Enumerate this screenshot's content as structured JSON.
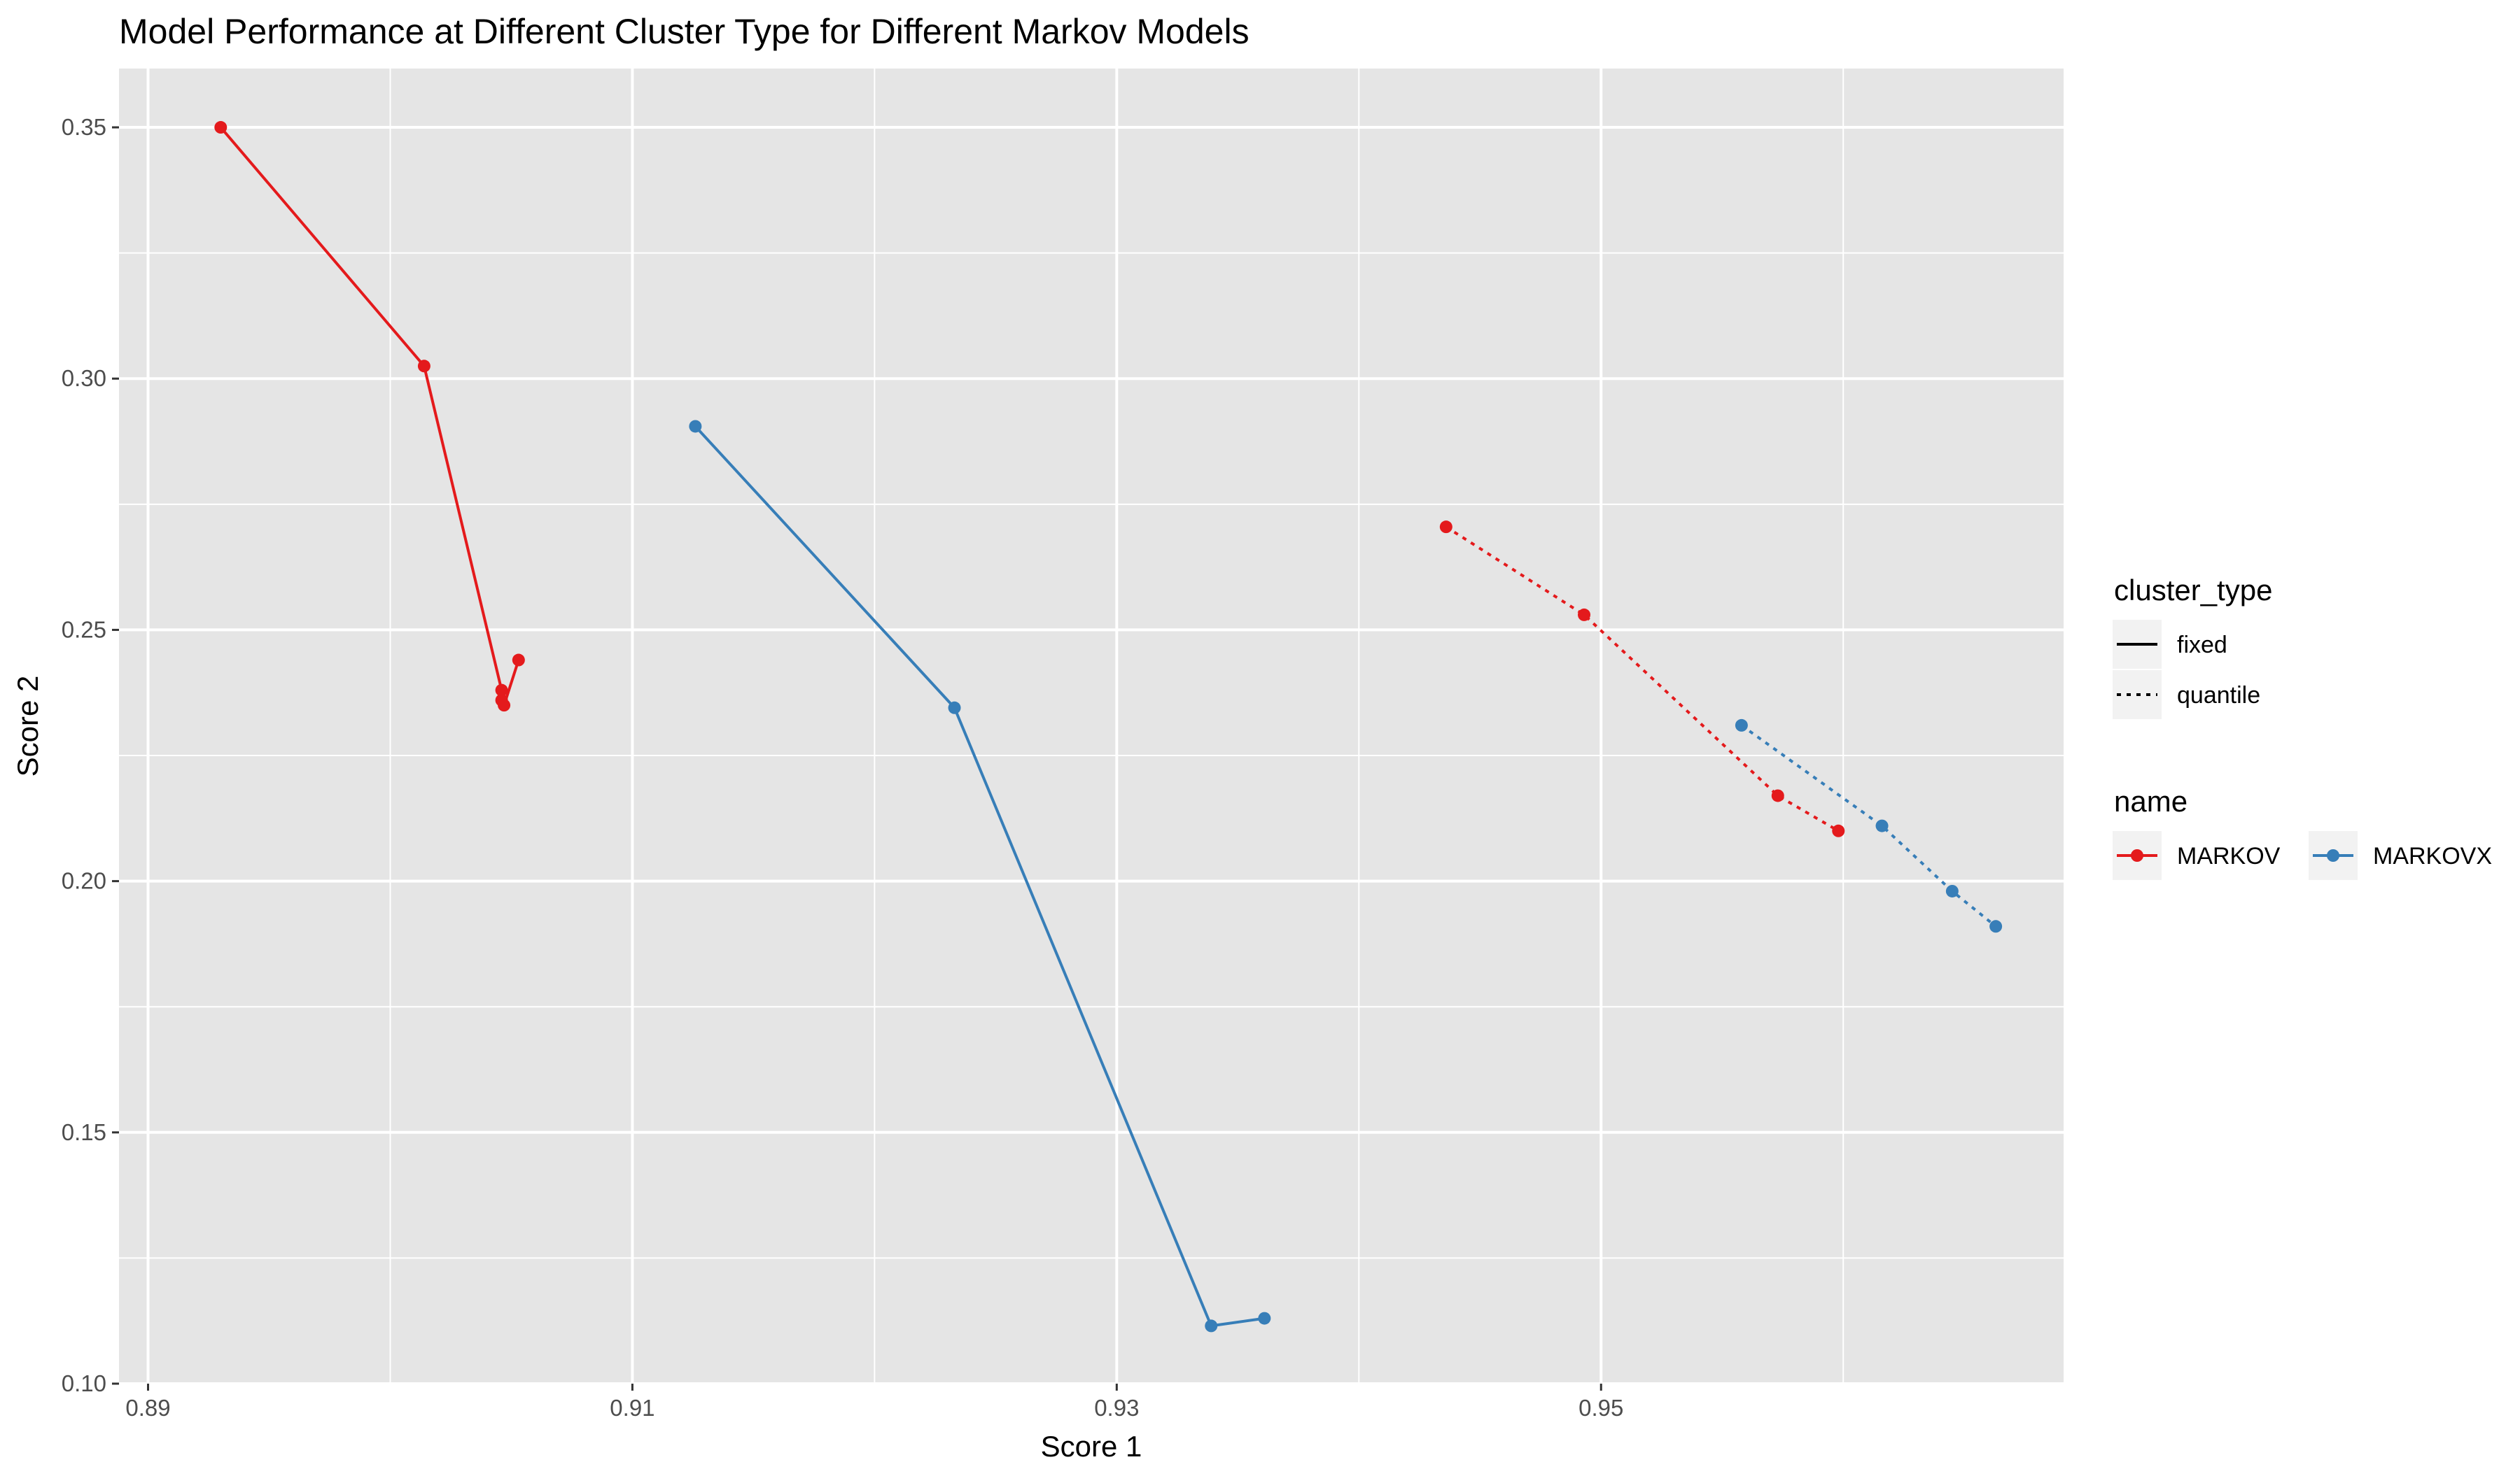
{
  "chart_data": {
    "type": "line",
    "title": "Model Performance at Different Cluster Type for Different Markov Models",
    "xlabel": "Score 1",
    "ylabel": "Score 2",
    "xlim": [
      0.8888,
      0.9691
    ],
    "ylim": [
      0.1,
      0.3617
    ],
    "x_ticks": [
      0.89,
      0.91,
      0.93,
      0.95
    ],
    "x_tick_labels": [
      "0.89",
      "0.91",
      "0.93",
      "0.95"
    ],
    "y_ticks": [
      0.1,
      0.15,
      0.2,
      0.25,
      0.3,
      0.35
    ],
    "y_tick_labels": [
      "0.10",
      "0.15",
      "0.20",
      "0.25",
      "0.30",
      "0.35"
    ],
    "grid": true,
    "legend_placement": "right",
    "legends": {
      "cluster_type": {
        "title": "cluster_type",
        "items": [
          {
            "label": "fixed",
            "linestyle": "solid"
          },
          {
            "label": "quantile",
            "linestyle": "dotted"
          }
        ]
      },
      "name": {
        "title": "name",
        "items": [
          {
            "label": "MARKOV",
            "color": "#E41A1C"
          },
          {
            "label": "MARKOVX",
            "color": "#377EB8"
          }
        ]
      }
    },
    "series": [
      {
        "name": "MARKOV",
        "cluster_type": "fixed",
        "color": "#E41A1C",
        "points": [
          [
            0.893,
            0.35
          ],
          [
            0.9014,
            0.3025
          ],
          [
            0.9046,
            0.238
          ],
          [
            0.9046,
            0.236
          ],
          [
            0.9047,
            0.235
          ],
          [
            0.9053,
            0.244
          ]
        ]
      },
      {
        "name": "MARKOVX",
        "cluster_type": "fixed",
        "color": "#377EB8",
        "points": [
          [
            0.9126,
            0.2905
          ],
          [
            0.9233,
            0.2345
          ],
          [
            0.9339,
            0.1115
          ],
          [
            0.9361,
            0.113
          ]
        ]
      },
      {
        "name": "MARKOV",
        "cluster_type": "quantile",
        "color": "#E41A1C",
        "points": [
          [
            0.9436,
            0.2705
          ],
          [
            0.9493,
            0.253
          ],
          [
            0.9573,
            0.217
          ],
          [
            0.9598,
            0.21
          ]
        ]
      },
      {
        "name": "MARKOVX",
        "cluster_type": "quantile",
        "color": "#377EB8",
        "points": [
          [
            0.9558,
            0.231
          ],
          [
            0.9616,
            0.211
          ],
          [
            0.9645,
            0.198
          ],
          [
            0.9663,
            0.191
          ]
        ]
      }
    ],
    "colors": {
      "panel_bg": "#E5E5E5",
      "grid": "#FFFFFF",
      "MARKOV": "#E41A1C",
      "MARKOVX": "#377EB8"
    }
  }
}
